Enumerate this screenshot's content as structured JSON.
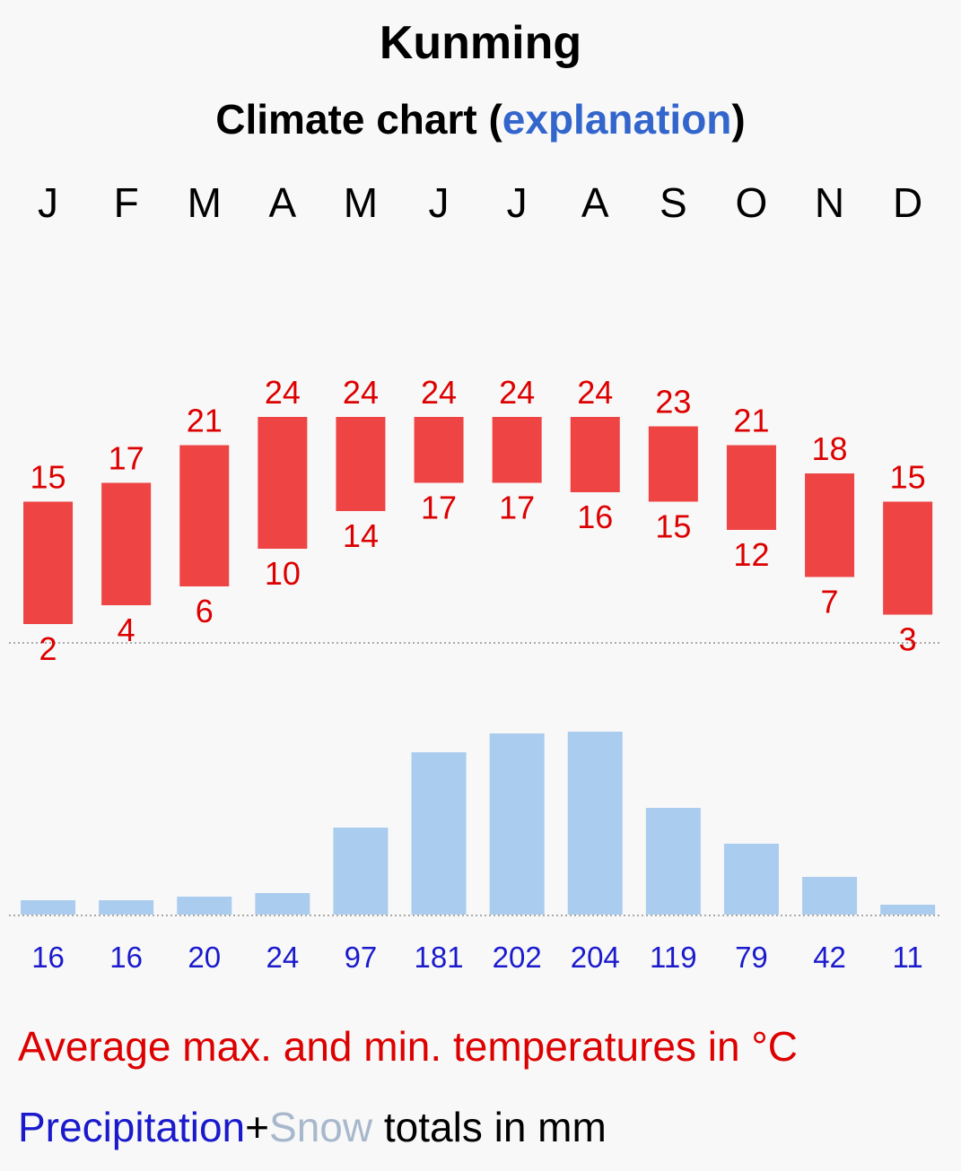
{
  "title": "Kunming",
  "subtitle": {
    "prefix": "Climate chart (",
    "link": "explanation",
    "suffix": ")"
  },
  "colors": {
    "temp": "#ee4444",
    "temp_text": "#dd0000",
    "precip": "#aaccee",
    "precip_text": "#1a1acc",
    "dotted": "#aaaaaa"
  },
  "chart_data": {
    "type": "bar",
    "categories": [
      "J",
      "F",
      "M",
      "A",
      "M",
      "J",
      "J",
      "A",
      "S",
      "O",
      "N",
      "D"
    ],
    "series": [
      {
        "name": "Average max temperature (°C)",
        "values": [
          15,
          17,
          21,
          24,
          24,
          24,
          24,
          24,
          23,
          21,
          18,
          15
        ]
      },
      {
        "name": "Average min temperature (°C)",
        "values": [
          2,
          4,
          6,
          10,
          14,
          17,
          17,
          16,
          15,
          12,
          7,
          3
        ]
      },
      {
        "name": "Precipitation (mm)",
        "values": [
          16,
          16,
          20,
          24,
          97,
          181,
          202,
          204,
          119,
          79,
          42,
          11
        ]
      }
    ],
    "temp_unit": "°C",
    "precip_unit": "mm"
  },
  "legend": {
    "temp": "Average max. and min. temperatures in °C",
    "precip": "Precipitation",
    "plus": "+",
    "snow": "Snow",
    "totals": " totals in mm"
  }
}
